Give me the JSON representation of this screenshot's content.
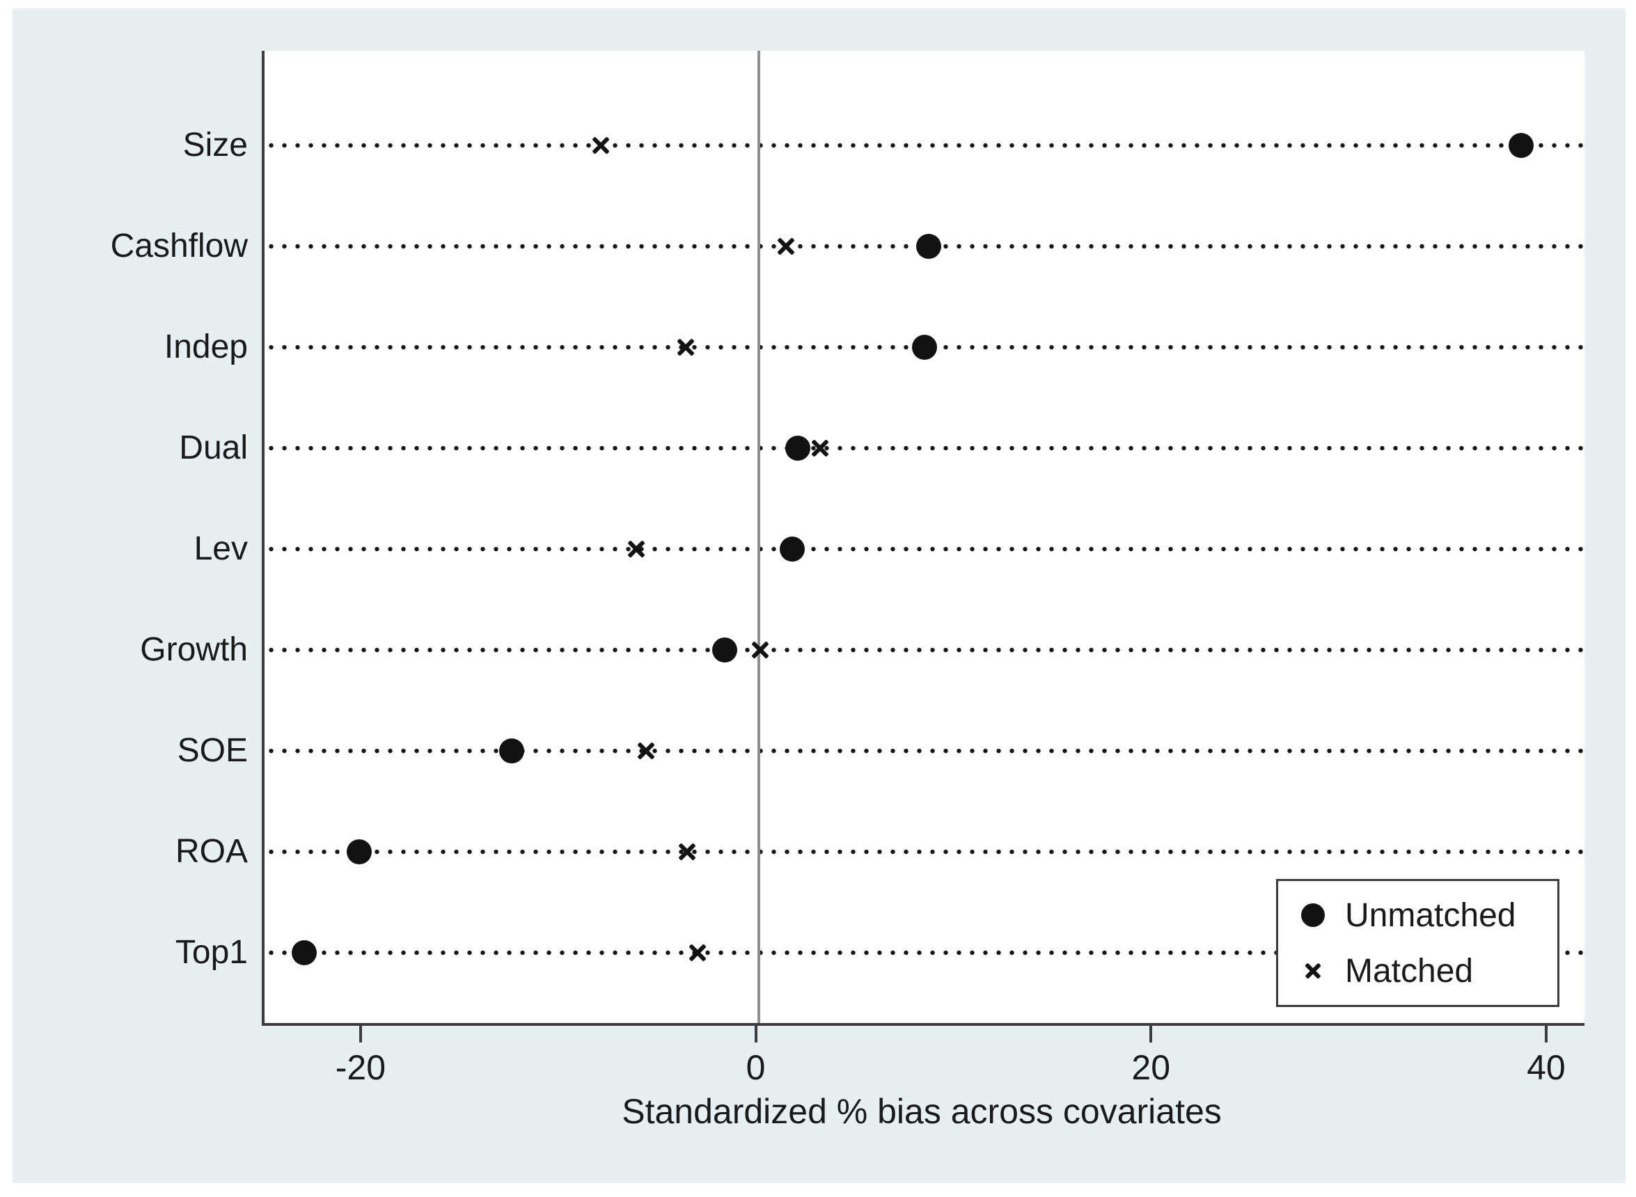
{
  "figure": {
    "background": "#ffffff",
    "canvas_background": "#e8eff2",
    "plot_background": "#ffffff",
    "axis_color": "#3c3c3c",
    "zero_line_color": "#8f8f8f",
    "marker_color": "#121212",
    "text_color": "#1a1a1a"
  },
  "chart_data": {
    "type": "scatter",
    "orientation": "horizontal-dot-plot",
    "title": "",
    "xlabel": "Standardized % bias across covariates",
    "ylabel": "",
    "categories": [
      "Size",
      "Cashflow",
      "Indep",
      "Dual",
      "Lev",
      "Growth",
      "SOE",
      "ROA",
      "Top1"
    ],
    "series": [
      {
        "name": "Unmatched",
        "marker": "circle",
        "values": [
          38.6,
          8.6,
          8.4,
          2.0,
          1.7,
          -1.7,
          -12.5,
          -20.2,
          -23.0
        ]
      },
      {
        "name": "Matched",
        "marker": "x",
        "values": [
          -8.0,
          1.4,
          -3.7,
          3.1,
          -6.2,
          0.1,
          -5.7,
          -3.6,
          -3.1
        ]
      }
    ],
    "x_ticks": [
      -20,
      0,
      20,
      40
    ],
    "x_tick_labels": [
      "-20",
      "0",
      "20",
      "40"
    ],
    "xlim": [
      -25.0,
      41.8
    ],
    "zero_reference_line": 0,
    "grid": "dotted horizontal line per category",
    "legend_position": "inside bottom-right"
  },
  "legend": {
    "items": [
      {
        "label": "Unmatched",
        "marker": "circle"
      },
      {
        "label": "Matched",
        "marker": "x"
      }
    ]
  }
}
